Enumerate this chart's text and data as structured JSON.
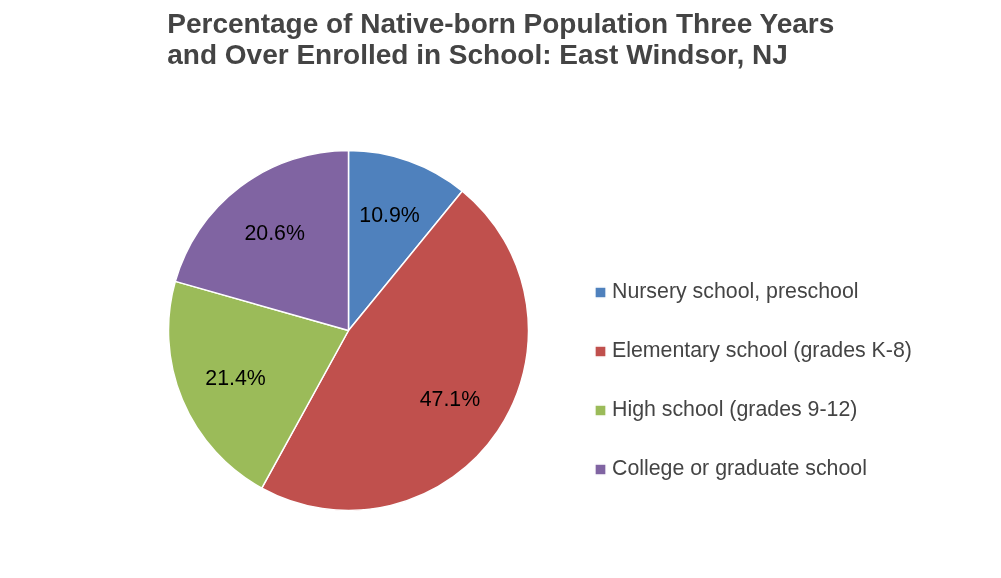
{
  "chart_data": {
    "type": "pie",
    "title": "Percentage of Native-born Population Three Years\nand Over Enrolled in School: East Windsor, NJ",
    "categories": [
      "Nursery school, preschool",
      "Elementary school (grades K-8)",
      "High school (grades 9-12)",
      "College or graduate school"
    ],
    "values": [
      10.9,
      47.1,
      21.4,
      20.6
    ],
    "colors": [
      "#4f81bd",
      "#c0504d",
      "#9bbb59",
      "#8064a2"
    ],
    "value_labels": [
      "10.9%",
      "47.1%",
      "21.4%",
      "20.6%"
    ],
    "legend": "right"
  }
}
